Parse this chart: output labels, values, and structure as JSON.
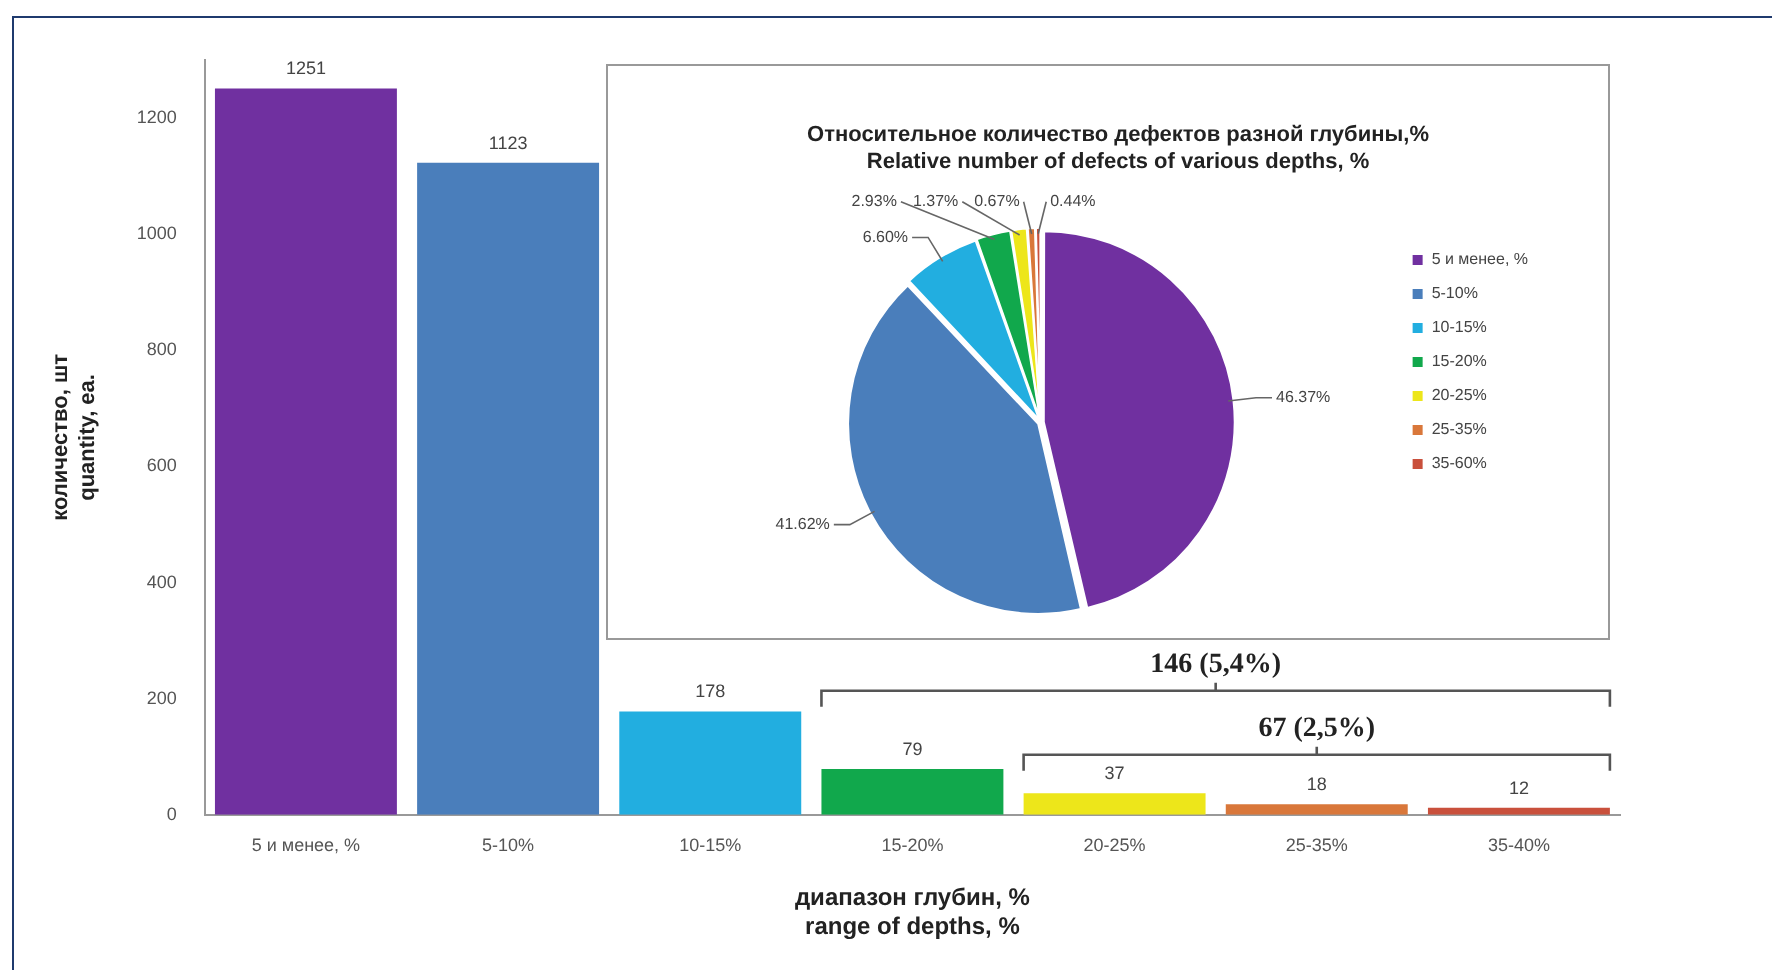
{
  "chart_data": [
    {
      "type": "bar",
      "xlabel": "диапазон глубин, %\nrange of depths, %",
      "ylabel": "количество, шт\nquantity, ea.",
      "categories": [
        "5 и менее, %",
        "5-10%",
        "10-15%",
        "15-20%",
        "20-25%",
        "25-35%",
        "35-40%"
      ],
      "values": [
        1251,
        1123,
        178,
        79,
        37,
        18,
        12
      ],
      "colors": [
        "#7030a0",
        "#4a7ebb",
        "#22aee0",
        "#11a84c",
        "#ede61a",
        "#d9773a",
        "#c9503c"
      ],
      "ylim": [
        0,
        1300
      ],
      "yticks": [
        0,
        200,
        400,
        600,
        800,
        1000,
        1200
      ],
      "grid": false,
      "legend": false,
      "data_labels": true,
      "annotations": [
        "146 (5,4%)",
        "67 (2,5%)"
      ]
    },
    {
      "type": "pie",
      "title": "Относительное количество дефектов разной глубины,%\nRelative number of defects of various depths, %",
      "categories": [
        "5 и менее, %",
        "5-10%",
        "10-15%",
        "15-20%",
        "20-25%",
        "25-35%",
        "35-60%"
      ],
      "values": [
        46.37,
        41.62,
        6.6,
        2.93,
        1.37,
        0.67,
        0.44
      ],
      "value_labels": [
        "46.37%",
        "41.62%",
        "6.60%",
        "2.93%",
        "1.37%",
        "0.67%",
        "0.44%"
      ],
      "colors": [
        "#7030a0",
        "#4a7ebb",
        "#22aee0",
        "#11a84c",
        "#ede61a",
        "#d9773a",
        "#c9503c"
      ],
      "legend": "right"
    }
  ]
}
